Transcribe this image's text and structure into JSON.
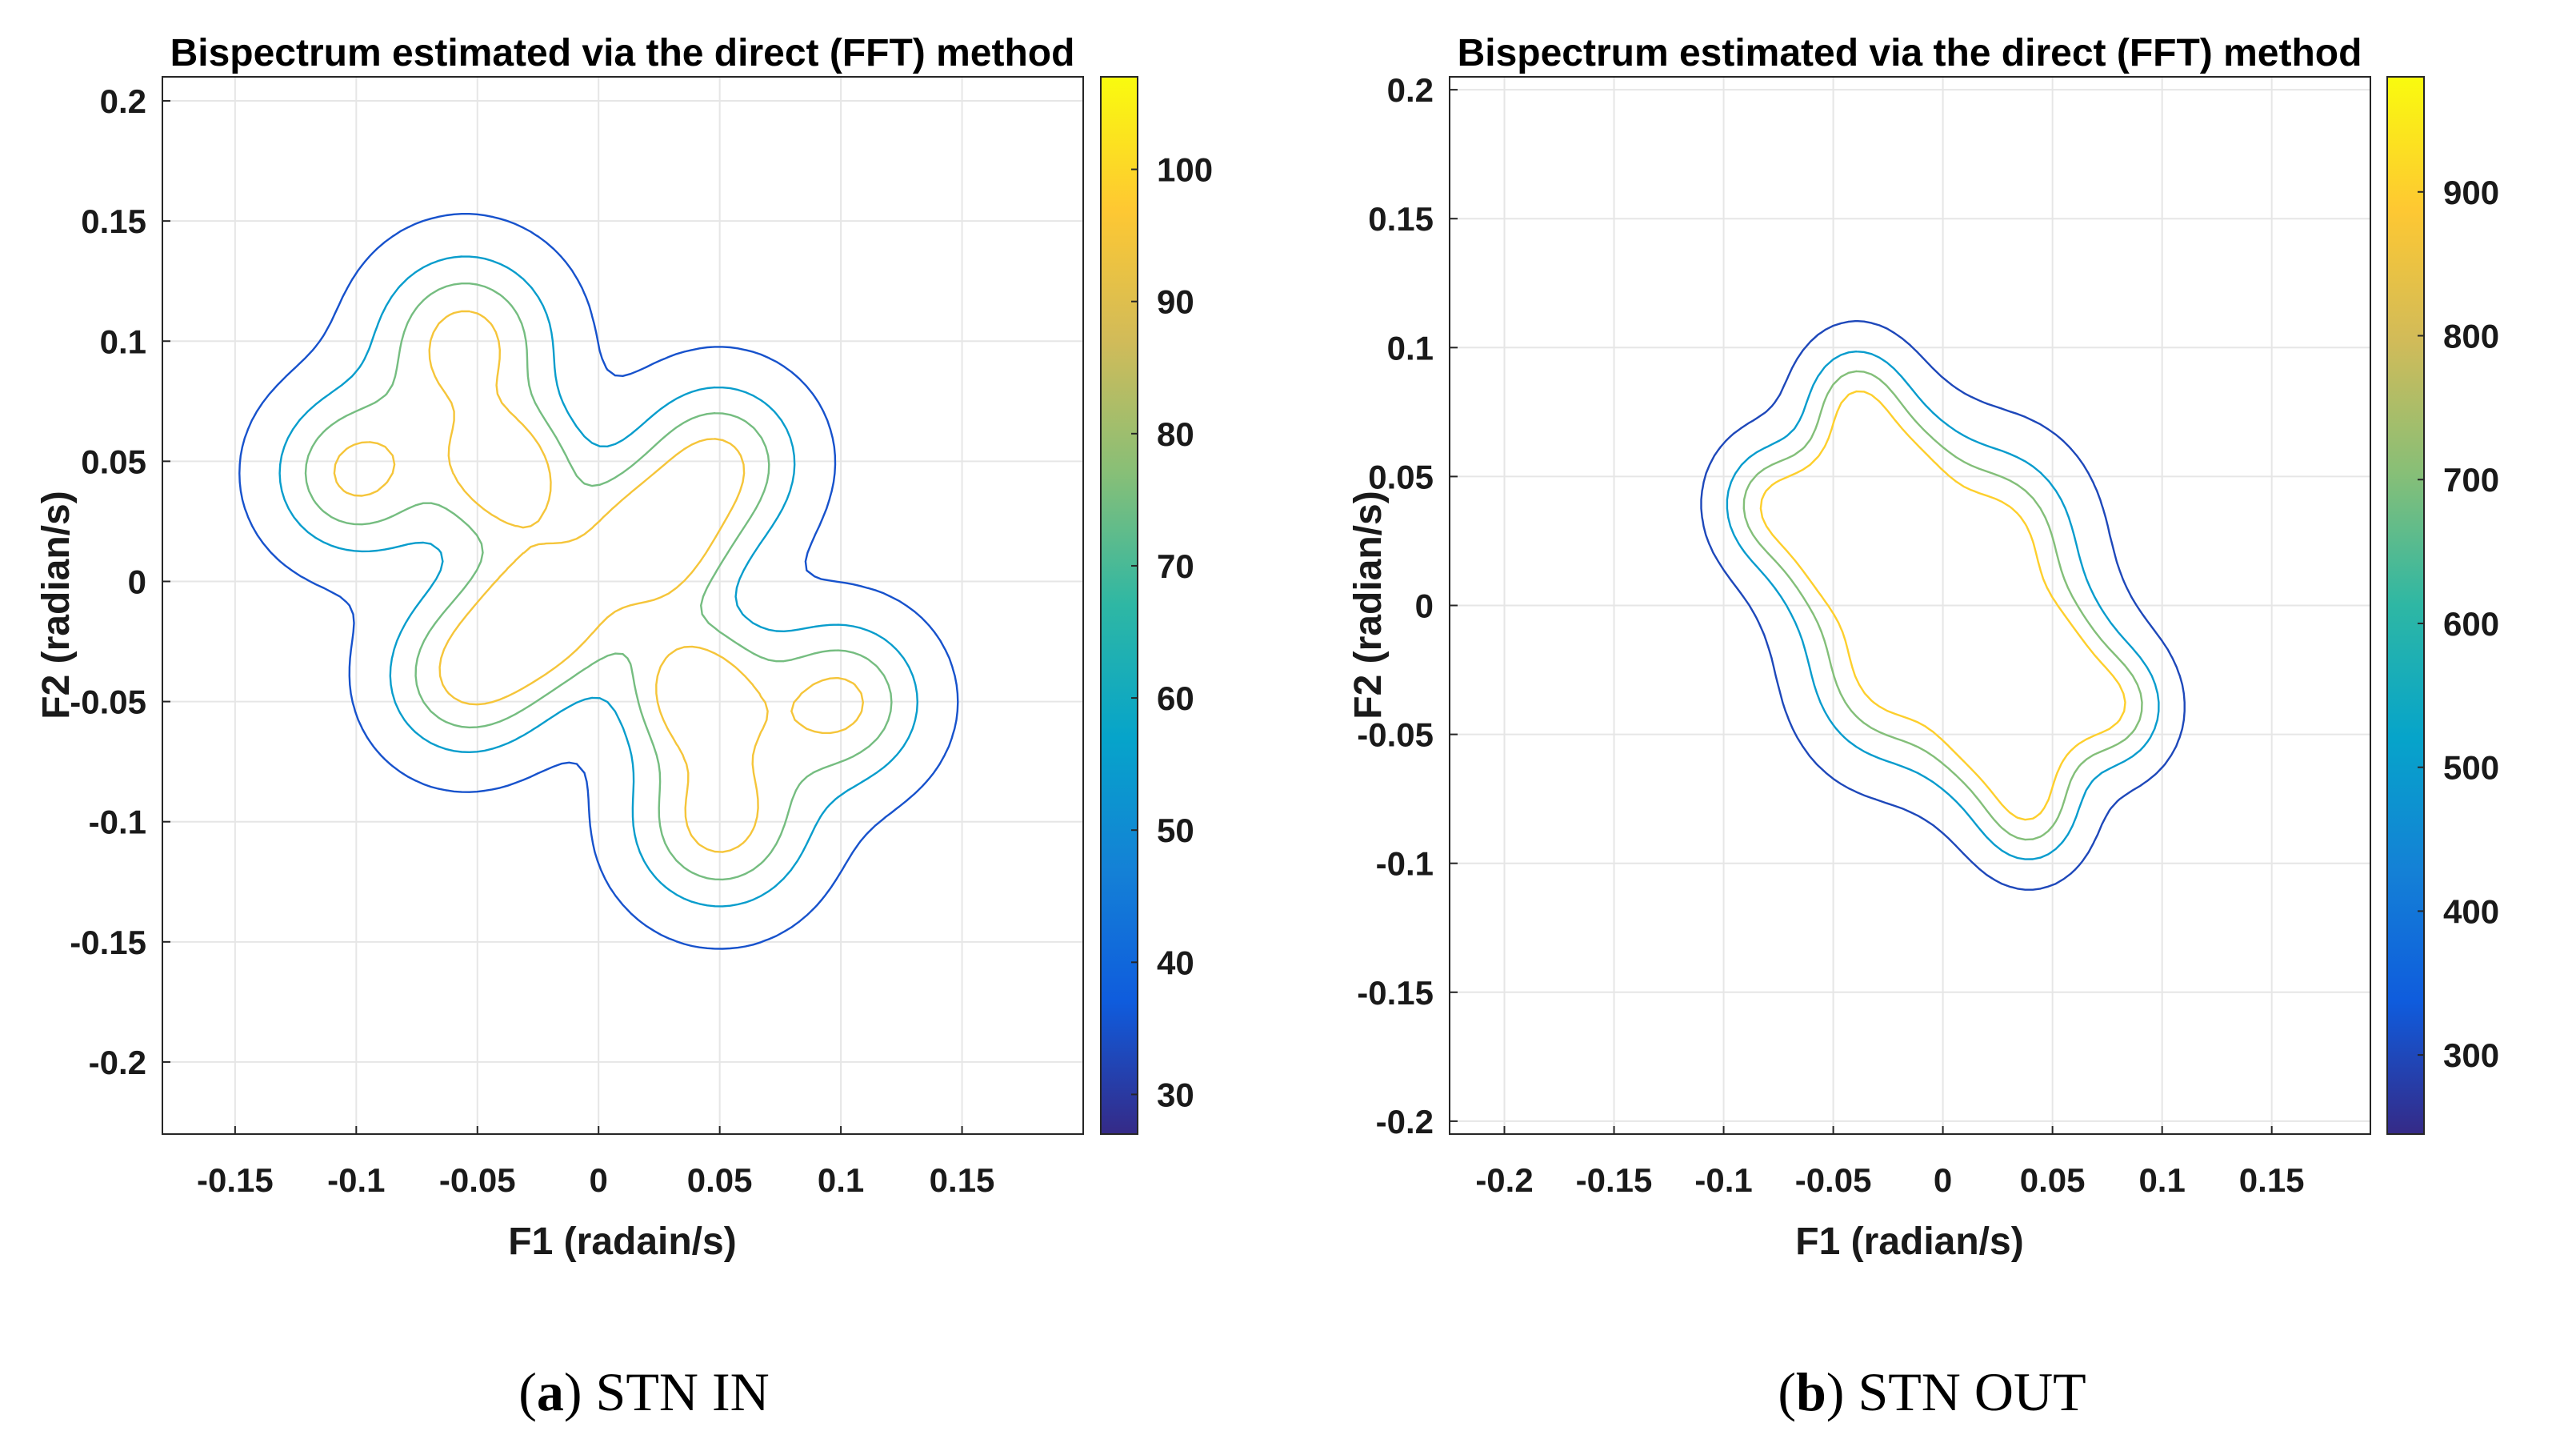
{
  "chart_data": [
    {
      "type": "contour",
      "title": "Bispectrum estimated via the direct (FFT) method",
      "xlabel": "F1 (radain/s)",
      "ylabel": "F2 (radian/s)",
      "xlim": [
        -0.18,
        0.2
      ],
      "ylim": [
        -0.23,
        0.21
      ],
      "xticks": [
        -0.15,
        -0.1,
        -0.05,
        0,
        0.05,
        0.1,
        0.15
      ],
      "xtick_labels": [
        "-0.15",
        "-0.1",
        "-0.05",
        "0",
        "0.05",
        "0.1",
        "0.15"
      ],
      "yticks": [
        0.2,
        0.15,
        0.1,
        0.05,
        0,
        -0.05,
        -0.1,
        -0.15,
        -0.2
      ],
      "ytick_labels": [
        "0.2",
        "0.15",
        "0.1",
        "0.05",
        "0",
        "-0.05",
        "-0.1",
        "-0.15",
        "-0.2"
      ],
      "grid": true,
      "colorbar": {
        "range": [
          27,
          107
        ],
        "ticks": [
          100,
          90,
          80,
          70,
          60,
          50,
          40,
          30
        ],
        "tick_labels": [
          "100",
          "90",
          "80",
          "70",
          "60",
          "50",
          "40",
          "30"
        ],
        "colormap": "parula"
      },
      "contour_levels": [
        35,
        55,
        75,
        95
      ],
      "blobs": [
        {
          "x": -0.037,
          "y": 0.045,
          "a": 0.02,
          "w": 1.0
        },
        {
          "x": -0.023,
          "y": -0.013,
          "a": 0.022,
          "w": 1.0
        },
        {
          "x": 0.022,
          "y": 0.015,
          "a": 0.022,
          "w": 1.0
        },
        {
          "x": 0.04,
          "y": -0.045,
          "a": 0.02,
          "w": 1.0
        },
        {
          "x": -0.055,
          "y": 0.1,
          "a": 0.026,
          "w": 0.95
        },
        {
          "x": 0.05,
          "y": -0.1,
          "a": 0.026,
          "w": 0.95
        },
        {
          "x": -0.1,
          "y": 0.045,
          "a": 0.024,
          "w": 0.9
        },
        {
          "x": 0.1,
          "y": -0.05,
          "a": 0.024,
          "w": 0.9
        },
        {
          "x": -0.055,
          "y": -0.04,
          "a": 0.024,
          "w": 0.85
        },
        {
          "x": 0.05,
          "y": 0.05,
          "a": 0.024,
          "w": 0.85
        }
      ],
      "caption_letter": "a",
      "caption_text": "STN IN"
    },
    {
      "type": "contour",
      "title": "Bispectrum estimated via the direct (FFT) method",
      "xlabel": "F1 (radian/s)",
      "ylabel": "F2 (radian/s)",
      "xlim": [
        -0.225,
        0.195
      ],
      "ylim": [
        -0.205,
        0.205
      ],
      "xticks": [
        -0.2,
        -0.15,
        -0.1,
        -0.05,
        0,
        0.05,
        0.1,
        0.15
      ],
      "xtick_labels": [
        "-0.2",
        "-0.15",
        "-0.1",
        "-0.05",
        "0",
        "0.05",
        "0.1",
        "0.15"
      ],
      "yticks": [
        0.2,
        0.15,
        0.1,
        0.05,
        0,
        -0.05,
        -0.1,
        -0.15,
        -0.2
      ],
      "ytick_labels": [
        "0.2",
        "0.15",
        "0.1",
        "0.05",
        "0",
        "-0.05",
        "-0.1",
        "-0.15",
        "-0.2"
      ],
      "grid": true,
      "colorbar": {
        "range": [
          245,
          980
        ],
        "ticks": [
          900,
          800,
          700,
          600,
          500,
          400,
          300
        ],
        "tick_labels": [
          "900",
          "800",
          "700",
          "600",
          "500",
          "400",
          "300"
        ],
        "colormap": "parula"
      },
      "contour_levels": [
        300,
        500,
        700,
        900
      ],
      "blobs": [
        {
          "x": -0.045,
          "y": 0.025,
          "a": 0.022,
          "w": 1.0
        },
        {
          "x": -0.025,
          "y": 0.045,
          "a": 0.022,
          "w": 1.0
        },
        {
          "x": 0.025,
          "y": -0.045,
          "a": 0.022,
          "w": 1.0
        },
        {
          "x": 0.045,
          "y": -0.025,
          "a": 0.022,
          "w": 1.0
        },
        {
          "x": 0.025,
          "y": 0.025,
          "a": 0.024,
          "w": 0.95
        },
        {
          "x": -0.025,
          "y": -0.025,
          "a": 0.024,
          "w": 0.95
        },
        {
          "x": -0.08,
          "y": 0.04,
          "a": 0.016,
          "w": 0.65
        },
        {
          "x": -0.04,
          "y": 0.08,
          "a": 0.016,
          "w": 0.65
        },
        {
          "x": 0.08,
          "y": -0.04,
          "a": 0.016,
          "w": 0.65
        },
        {
          "x": 0.04,
          "y": -0.08,
          "a": 0.016,
          "w": 0.65
        }
      ],
      "caption_letter": "b",
      "caption_text": "STN OUT"
    }
  ],
  "colors": {
    "parula": [
      "#352a87",
      "#0f5cdd",
      "#1481d6",
      "#06a4ca",
      "#2eb7a4",
      "#87bf77",
      "#d1bb59",
      "#fec832",
      "#f9fb0e"
    ],
    "grid": "#e6e6e6",
    "axis": "#262626"
  }
}
